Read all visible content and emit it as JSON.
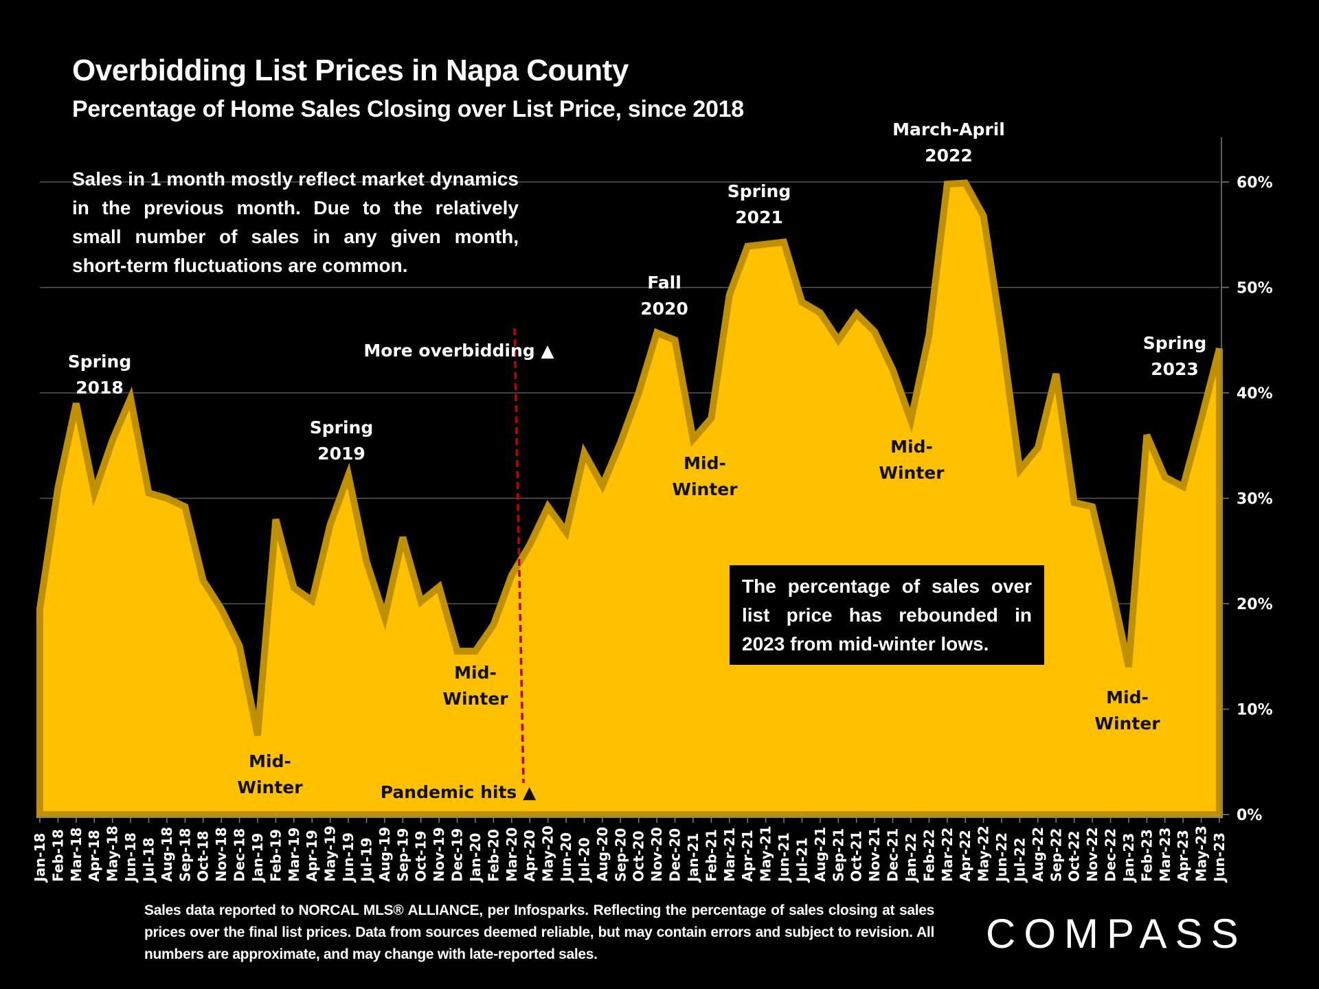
{
  "header": {
    "title": "Overbidding List Prices in Napa County",
    "subtitle": "Percentage of Home Sales Closing over List Price, since 2018"
  },
  "note": "Sales in 1 month mostly reflect market dynamics in the previous month. Due to the relatively small number of sales in any given month, short-term fluctuations are common.",
  "callout": "The percentage of sales over list price has rebounded in 2023 from mid-winter lows.",
  "footer": "Sales data reported to NORCAL MLS® ALLIANCE, per Infosparks. Reflecting the percentage of sales closing at sales prices over the final list prices. Data from sources deemed reliable, but may contain errors and subject to revision. All numbers are approximate, and may change with late-reported sales.",
  "logo": "COMPASS",
  "colors": {
    "background": "#000000",
    "area_fill": "#FFC000",
    "area_line": "#BF9000",
    "pandemic_line": "#C00000",
    "gridline": "#595959"
  },
  "chart_data": {
    "type": "area",
    "title": "Overbidding List Prices in Napa County",
    "subtitle": "Percentage of Home Sales Closing over List Price, since 2018",
    "xlabel": "",
    "ylabel": "",
    "y_axis_position": "right",
    "ylim": [
      0,
      60
    ],
    "yticks": [
      0,
      10,
      20,
      30,
      40,
      50,
      60
    ],
    "ytick_labels": [
      "0%",
      "10%",
      "20%",
      "30%",
      "40%",
      "50%",
      "60%"
    ],
    "grid": true,
    "legend": "none",
    "categories": [
      "Jan-18",
      "Feb-18",
      "Mar-18",
      "Apr-18",
      "May-18",
      "Jun-18",
      "Jul-18",
      "Aug-18",
      "Sep-18",
      "Oct-18",
      "Nov-18",
      "Dec-18",
      "Jan-19",
      "Feb-19",
      "Mar-19",
      "Apr-19",
      "May-19",
      "Jun-19",
      "Jul-19",
      "Aug-19",
      "Sep-19",
      "Oct-19",
      "Nov-19",
      "Dec-19",
      "Jan-20",
      "Feb-20",
      "Mar-20",
      "Apr-20",
      "May-20",
      "Jun-20",
      "Jul-20",
      "Aug-20",
      "Sep-20",
      "Oct-20",
      "Nov-20",
      "Dec-20",
      "Jan-21",
      "Feb-21",
      "Mar-21",
      "Apr-21",
      "May-21",
      "Jun-21",
      "Jul-21",
      "Aug-21",
      "Sep-21",
      "Oct-21",
      "Nov-21",
      "Dec-21",
      "Jan-22",
      "Feb-22",
      "Mar-22",
      "Apr-22",
      "May-22",
      "Jun-22",
      "Jul-22",
      "Aug-22",
      "Sep-22",
      "Oct-22",
      "Nov-22",
      "Dec-22",
      "Jan-23",
      "Feb-23",
      "Mar-23",
      "Apr-23",
      "May-23",
      "Jun-23"
    ],
    "series": [
      {
        "name": "% of sales over list price",
        "values": [
          19.5,
          31,
          39,
          30.5,
          35.5,
          39.5,
          30.5,
          30,
          29.2,
          22.2,
          19.5,
          16,
          7.5,
          28,
          21.5,
          20.3,
          27.5,
          32.2,
          24,
          18.7,
          26.3,
          20.2,
          21.6,
          15.5,
          15.5,
          18,
          22.7,
          25.6,
          29.2,
          26.8,
          34.3,
          31.2,
          35.3,
          40,
          45.7,
          45,
          35.6,
          37.6,
          49.3,
          53.9,
          54.1,
          54.3,
          48.6,
          47.6,
          45,
          47.5,
          45.8,
          42.2,
          37.4,
          45.5,
          59.8,
          59.9,
          56.8,
          45.5,
          32.7,
          34.8,
          41.8,
          29.6,
          29.2,
          22,
          14,
          36,
          32,
          31.1,
          37.5,
          44.2
        ]
      }
    ],
    "annotations": [
      {
        "text": [
          "Spring",
          "2018"
        ],
        "month": "May-18",
        "style": "white"
      },
      {
        "text": [
          "Mid-",
          "Winter"
        ],
        "month": "Jan-19",
        "style": "dark"
      },
      {
        "text": [
          "Spring",
          "2019"
        ],
        "month": "May-19",
        "style": "white"
      },
      {
        "text": [
          "More overbidding ▲"
        ],
        "month": "Jan-19",
        "style": "white-label"
      },
      {
        "text": [
          "Mid-",
          "Winter"
        ],
        "month": "Jan-20",
        "style": "dark"
      },
      {
        "text": [
          "Pandemic hits ▲"
        ],
        "month": "Mar-20",
        "style": "dark-label"
      },
      {
        "text": [
          "Fall",
          "2020"
        ],
        "month": "Nov-20",
        "style": "white"
      },
      {
        "text": [
          "Mid-",
          "Winter"
        ],
        "month": "Feb-21",
        "style": "dark"
      },
      {
        "text": [
          "Spring",
          "2021"
        ],
        "month": "May-21",
        "style": "white"
      },
      {
        "text": [
          "March-April",
          "2022"
        ],
        "month": "Apr-22",
        "style": "white"
      },
      {
        "text": [
          "Mid-",
          "Winter"
        ],
        "month": "Jan-22",
        "style": "dark"
      },
      {
        "text": [
          "Mid-",
          "Winter"
        ],
        "month": "Jan-23",
        "style": "dark"
      },
      {
        "text": [
          "Spring",
          "2023"
        ],
        "month": "Jun-23",
        "style": "white"
      }
    ],
    "reference_line": {
      "label": "Pandemic hits",
      "between": [
        "Mar-20",
        "Apr-20"
      ],
      "style": "dashed"
    }
  }
}
